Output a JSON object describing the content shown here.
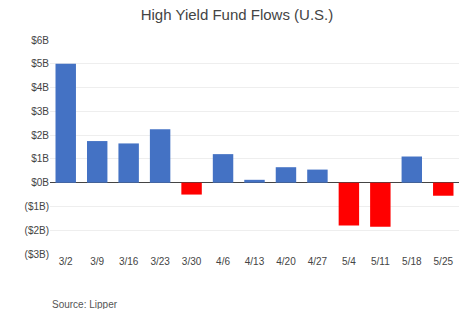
{
  "chart_data": {
    "type": "bar",
    "title": "High Yield Fund Flows (U.S.)",
    "categories": [
      "3/2",
      "3/9",
      "3/16",
      "3/23",
      "3/30",
      "4/6",
      "4/13",
      "4/20",
      "4/27",
      "5/4",
      "5/11",
      "5/18",
      "5/25"
    ],
    "values": [
      5.0,
      1.75,
      1.65,
      2.25,
      -0.5,
      1.2,
      0.12,
      0.65,
      0.55,
      -1.8,
      -1.85,
      1.1,
      -0.55
    ],
    "colors": [
      "#4472C4",
      "#4472C4",
      "#4472C4",
      "#4472C4",
      "#FF0000",
      "#4472C4",
      "#4472C4",
      "#4472C4",
      "#4472C4",
      "#FF0000",
      "#FF0000",
      "#4472C4",
      "#FF0000"
    ],
    "ylim": [
      -3.0,
      6.0
    ],
    "yticks": [
      {
        "value": -3,
        "label": "($3B)"
      },
      {
        "value": -2,
        "label": "($2B)"
      },
      {
        "value": -1,
        "label": "($1B)"
      },
      {
        "value": 0,
        "label": "$0B"
      },
      {
        "value": 1,
        "label": "$1B"
      },
      {
        "value": 2,
        "label": "$2B"
      },
      {
        "value": 3,
        "label": "$3B"
      },
      {
        "value": 4,
        "label": "$4B"
      },
      {
        "value": 5,
        "label": "$5B"
      },
      {
        "value": 6,
        "label": "$6B"
      }
    ],
    "grid": true,
    "annotations": [
      "Source: Lipper"
    ]
  }
}
